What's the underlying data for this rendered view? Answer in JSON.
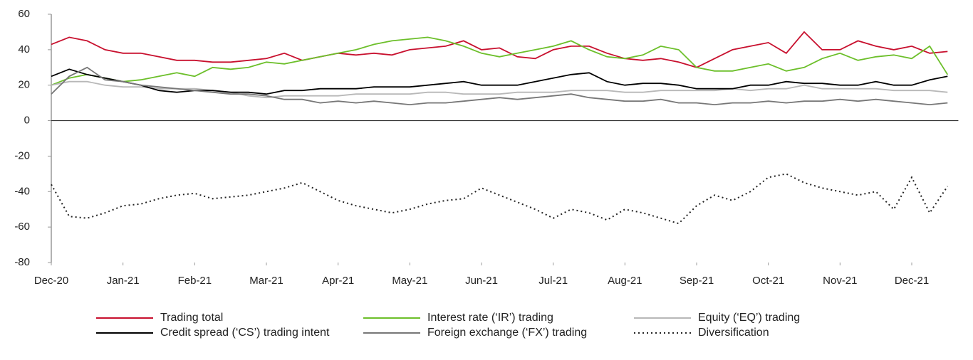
{
  "chart_data": {
    "type": "line",
    "x": [
      0,
      0.25,
      0.5,
      0.75,
      1,
      1.25,
      1.5,
      1.75,
      2,
      2.25,
      2.5,
      2.75,
      3,
      3.25,
      3.5,
      3.75,
      4,
      4.25,
      4.5,
      4.75,
      5,
      5.25,
      5.5,
      5.75,
      6,
      6.25,
      6.5,
      6.75,
      7,
      7.25,
      7.5,
      7.75,
      8,
      8.25,
      8.5,
      8.75,
      9,
      9.25,
      9.5,
      9.75,
      10,
      10.25,
      10.5,
      10.75,
      11,
      11.25,
      11.5,
      11.75,
      12,
      12.25,
      12.5
    ],
    "xlim": [
      0,
      12.65
    ],
    "xticks": [
      {
        "value": 0,
        "label": "Dec-20"
      },
      {
        "value": 1,
        "label": "Jan-21"
      },
      {
        "value": 2,
        "label": "Feb-21"
      },
      {
        "value": 3,
        "label": "Mar-21"
      },
      {
        "value": 4,
        "label": "Apr-21"
      },
      {
        "value": 5,
        "label": "May-21"
      },
      {
        "value": 6,
        "label": "Jun-21"
      },
      {
        "value": 7,
        "label": "Jul-21"
      },
      {
        "value": 8,
        "label": "Aug-21"
      },
      {
        "value": 9,
        "label": "Sep-21"
      },
      {
        "value": 10,
        "label": "Oct-21"
      },
      {
        "value": 11,
        "label": "Nov-21"
      },
      {
        "value": 12,
        "label": "Dec-21"
      }
    ],
    "ylim": [
      -80,
      60
    ],
    "yticks": [
      -80,
      -60,
      -40,
      -20,
      0,
      20,
      40,
      60
    ],
    "series": [
      {
        "name": "Trading total",
        "color": "#c8102e",
        "dash": "solid",
        "values": [
          43,
          47,
          45,
          40,
          38,
          38,
          36,
          34,
          34,
          33,
          33,
          34,
          35,
          38,
          34,
          36,
          38,
          37,
          38,
          37,
          40,
          41,
          42,
          45,
          40,
          41,
          36,
          35,
          40,
          42,
          42,
          38,
          35,
          34,
          35,
          33,
          30,
          35,
          40,
          42,
          44,
          38,
          50,
          40,
          40,
          45,
          42,
          40,
          42,
          38,
          39
        ]
      },
      {
        "name": "Interest rate (‘IR’) trading",
        "color": "#6cbf2a",
        "dash": "solid",
        "values": [
          20,
          24,
          26,
          24,
          22,
          23,
          25,
          27,
          25,
          30,
          29,
          30,
          33,
          32,
          34,
          36,
          38,
          40,
          43,
          45,
          46,
          47,
          45,
          42,
          38,
          36,
          38,
          40,
          42,
          45,
          40,
          36,
          35,
          37,
          42,
          40,
          30,
          28,
          28,
          30,
          32,
          28,
          30,
          35,
          38,
          34,
          36,
          37,
          35,
          42,
          26
        ]
      },
      {
        "name": "Equity (‘EQ’) trading",
        "color": "#b8b8b8",
        "dash": "solid",
        "values": [
          20,
          22,
          22,
          20,
          19,
          19,
          18,
          18,
          18,
          17,
          16,
          14,
          13,
          14,
          14,
          14,
          14,
          15,
          15,
          15,
          15,
          16,
          16,
          15,
          15,
          15,
          16,
          16,
          16,
          17,
          17,
          17,
          16,
          16,
          17,
          17,
          17,
          17,
          18,
          17,
          18,
          18,
          20,
          18,
          18,
          18,
          18,
          17,
          17,
          17,
          16
        ]
      },
      {
        "name": "Credit spread (‘CS’) trading intent",
        "color": "#000000",
        "dash": "solid",
        "values": [
          25,
          29,
          26,
          24,
          22,
          20,
          17,
          16,
          17,
          17,
          16,
          16,
          15,
          17,
          17,
          18,
          18,
          18,
          19,
          19,
          19,
          20,
          21,
          22,
          20,
          20,
          20,
          22,
          24,
          26,
          27,
          22,
          20,
          21,
          21,
          20,
          18,
          18,
          18,
          20,
          20,
          22,
          21,
          21,
          20,
          20,
          22,
          20,
          20,
          23,
          25
        ]
      },
      {
        "name": "Foreign exchange (‘FX’) trading",
        "color": "#777777",
        "dash": "solid",
        "values": [
          15,
          25,
          30,
          23,
          22,
          20,
          19,
          18,
          17,
          16,
          15,
          15,
          14,
          12,
          12,
          10,
          11,
          10,
          11,
          10,
          9,
          10,
          10,
          11,
          12,
          13,
          12,
          13,
          14,
          15,
          13,
          12,
          11,
          11,
          12,
          10,
          10,
          9,
          10,
          10,
          11,
          10,
          11,
          11,
          12,
          11,
          12,
          11,
          10,
          9,
          10
        ]
      },
      {
        "name": "Diversification",
        "color": "#222222",
        "dash": "dotted",
        "values": [
          -36,
          -54,
          -55,
          -52,
          -48,
          -47,
          -44,
          -42,
          -41,
          -44,
          -43,
          -42,
          -40,
          -38,
          -35,
          -40,
          -45,
          -48,
          -50,
          -52,
          -50,
          -47,
          -45,
          -44,
          -38,
          -42,
          -46,
          -50,
          -55,
          -50,
          -52,
          -56,
          -50,
          -52,
          -55,
          -58,
          -48,
          -42,
          -45,
          -40,
          -32,
          -30,
          -35,
          -38,
          -40,
          -42,
          -40,
          -50,
          -32,
          -52,
          -37
        ]
      }
    ]
  }
}
